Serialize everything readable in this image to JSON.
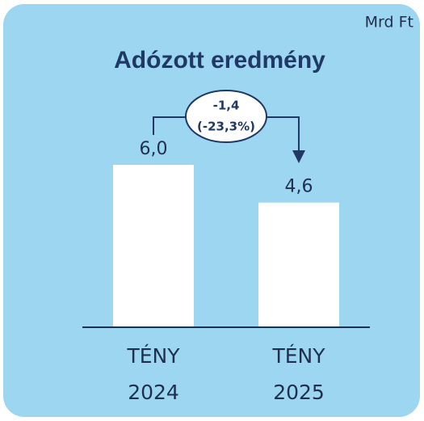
{
  "chart_data": {
    "type": "bar",
    "title": "Adózott eredmény",
    "unit": "Mrd Ft",
    "categories": [
      "TÉNY 2024",
      "TÉNY 2025"
    ],
    "values": [
      6.0,
      4.6
    ],
    "value_labels": [
      "6,0",
      "4,6"
    ],
    "color": "#ffffff",
    "background": "#9dd6f0",
    "annotations": [
      "-1,4",
      "(-23,3%)"
    ]
  }
}
